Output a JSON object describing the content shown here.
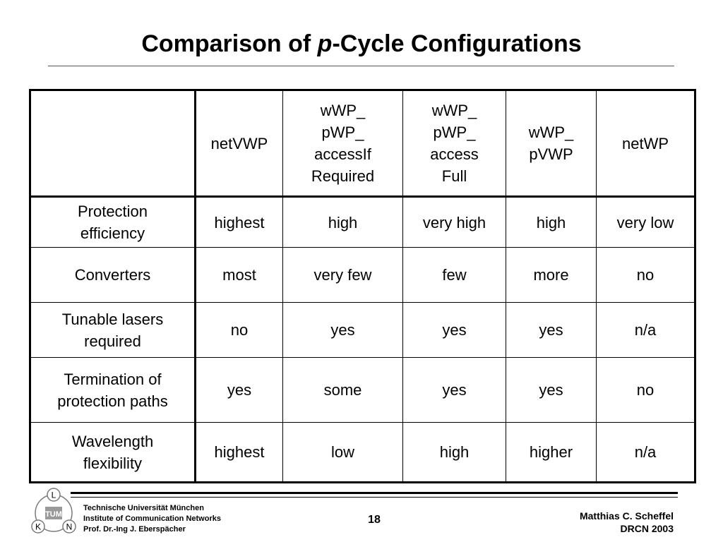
{
  "slide": {
    "title_before": "Comparison of ",
    "title_italic": "p",
    "title_after": "-Cycle Configurations"
  },
  "table": {
    "columns": [
      {
        "lines": [
          "netVWP"
        ]
      },
      {
        "lines": [
          "wWP_",
          "pWP_",
          "accessIf",
          "Required"
        ]
      },
      {
        "lines": [
          "wWP_",
          "pWP_",
          "access",
          "Full"
        ]
      },
      {
        "lines": [
          "wWP_",
          "pVWP"
        ]
      },
      {
        "lines": [
          "netWP"
        ]
      }
    ],
    "rows": [
      {
        "label_lines": [
          "Protection",
          "efficiency"
        ],
        "cells": [
          "highest",
          "high",
          "very high",
          "high",
          "very low"
        ]
      },
      {
        "label_lines": [
          "Converters"
        ],
        "cells": [
          "most",
          "very few",
          "few",
          "more",
          "no"
        ]
      },
      {
        "label_lines": [
          "Tunable lasers",
          "required"
        ],
        "cells": [
          "no",
          "yes",
          "yes",
          "yes",
          "n/a"
        ]
      },
      {
        "label_lines": [
          "Termination of",
          "protection paths"
        ],
        "cells": [
          "yes",
          "some",
          "yes",
          "yes",
          "no"
        ]
      },
      {
        "label_lines": [
          "Wavelength",
          "flexibility"
        ],
        "cells": [
          "highest",
          "low",
          "high",
          "higher",
          "n/a"
        ]
      }
    ]
  },
  "footer": {
    "logo_letters": [
      "L",
      "K",
      "N"
    ],
    "logo_center": "TUM",
    "institution_lines": [
      "Technische Universität München",
      "Institute of Communication Networks",
      "Prof. Dr.-Ing J. Eberspächer"
    ],
    "page_number": "18",
    "author": "Matthias C. Scheffel",
    "event": "DRCN 2003"
  },
  "colors": {
    "logo_circle": "#7a7a7a",
    "logo_fill": "#9a9a9a",
    "text": "#000000"
  }
}
